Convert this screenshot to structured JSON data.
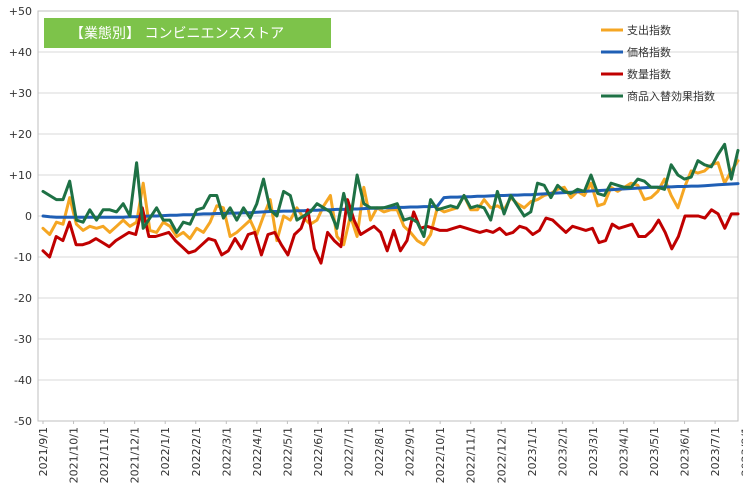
{
  "chart_data": {
    "type": "line",
    "title": "【業態別】 コンビニエンスストア",
    "title_bg": "#7DC34A",
    "ylim": [
      -50,
      50
    ],
    "y_ticks": [
      "+50",
      "+40",
      "+30",
      "+20",
      "+10",
      "0",
      "-10",
      "-20",
      "-30",
      "-40",
      "-50"
    ],
    "x_ticks": [
      "2021/9/1",
      "2021/10/1",
      "2021/11/1",
      "2021/12/1",
      "2022/1/1",
      "2022/2/1",
      "2022/3/1",
      "2022/4/1",
      "2022/5/1",
      "2022/6/1",
      "2022/7/1",
      "2022/8/1",
      "2022/9/1",
      "2022/10/1",
      "2022/11/1",
      "2022/12/1",
      "2023/1/1",
      "2023/2/1",
      "2023/3/1",
      "2023/4/1",
      "2023/5/1",
      "2023/6/1",
      "2023/7/1",
      "2023/8/1"
    ],
    "grid": "horizontal",
    "legend_position": "top-right",
    "series": [
      {
        "name": "支出指数",
        "color": "#F5A623",
        "values": [
          -3,
          -4.5,
          -1.5,
          -2,
          4.5,
          -2,
          -3.5,
          -2.5,
          -3,
          -2.5,
          -4,
          -2.5,
          -1,
          -2.5,
          -1.5,
          8,
          -3.5,
          -4,
          -1.5,
          -2.5,
          -5,
          -4,
          -5.5,
          -3,
          -4,
          -1.5,
          2.5,
          2,
          -5,
          -4,
          -2.5,
          -1,
          -4.5,
          0,
          4,
          -6,
          0,
          -1,
          2,
          -0.5,
          -2,
          -1,
          2.5,
          5,
          -5,
          -7,
          0,
          -5,
          7,
          -1,
          2,
          1,
          1.5,
          1.5,
          -2.5,
          -4,
          -6,
          -7,
          -4.5,
          2,
          1,
          1.5,
          2,
          5,
          1.5,
          1.5,
          4,
          2,
          2.5,
          1.5,
          4.5,
          3,
          2,
          3.5,
          4,
          5,
          5.5,
          6.5,
          7,
          4.5,
          6,
          5,
          8,
          2.5,
          3,
          7,
          6,
          7,
          8,
          7.5,
          4,
          4.5,
          6,
          9,
          5,
          2,
          7,
          11,
          10.5,
          11,
          12.5,
          13,
          8,
          11,
          13.5
        ]
      },
      {
        "name": "価格指数",
        "color": "#1F5FB5",
        "values": [
          0,
          -0.2,
          -0.3,
          -0.3,
          -0.3,
          -0.3,
          -0.3,
          -0.3,
          -0.3,
          -0.3,
          -0.3,
          -0.3,
          -0.3,
          -0.2,
          -0.2,
          -0.1,
          0,
          0,
          0.1,
          0.2,
          0.2,
          0.3,
          0.3,
          0.4,
          0.5,
          0.5,
          0.6,
          0.6,
          0.7,
          0.7,
          0.8,
          0.8,
          0.9,
          1,
          1.1,
          1.1,
          1.2,
          1.2,
          1.3,
          1.3,
          1.4,
          1.4,
          1.5,
          1.5,
          1.6,
          1.6,
          1.7,
          1.7,
          1.8,
          1.9,
          1.9,
          2,
          2,
          2.1,
          2.1,
          2.2,
          2.2,
          2.3,
          2.3,
          2.4,
          4.5,
          4.6,
          4.6,
          4.7,
          4.7,
          4.8,
          4.8,
          4.9,
          5,
          5,
          5.1,
          5.1,
          5.2,
          5.2,
          5.3,
          5.4,
          5.5,
          5.6,
          5.7,
          5.8,
          5.9,
          6,
          6.1,
          6.2,
          6.3,
          6.4,
          6.5,
          6.6,
          6.7,
          6.8,
          6.9,
          7,
          7,
          7.1,
          7.1,
          7.2,
          7.2,
          7.3,
          7.3,
          7.4,
          7.5,
          7.6,
          7.7,
          7.8,
          7.9
        ]
      },
      {
        "name": "数量指数",
        "color": "#C00000",
        "values": [
          -8.5,
          -10,
          -5,
          -6,
          -1.5,
          -7,
          -7,
          -6.5,
          -5.5,
          -6.5,
          -7.5,
          -6,
          -5,
          -4,
          -4.5,
          2,
          -5,
          -5,
          -4.5,
          -4,
          -6,
          -7.5,
          -9,
          -8.5,
          -7,
          -5.5,
          -6,
          -9.5,
          -8.5,
          -5.5,
          -8,
          -4.5,
          -4,
          -9.5,
          -4.5,
          -4,
          -7,
          -9.5,
          -4.5,
          -3,
          1.5,
          -8,
          -11.5,
          -4,
          -6,
          -7.5,
          4,
          -1,
          -4.5,
          -3.5,
          -2.5,
          -4,
          -8.5,
          -3.5,
          -8.5,
          -6,
          1,
          -3,
          -2.5,
          -3,
          -3.5,
          -3.5,
          -3,
          -2.5,
          -3,
          -3.5,
          -4,
          -3.5,
          -4,
          -3,
          -4.5,
          -4,
          -2.5,
          -3,
          -4.5,
          -3.5,
          -0.5,
          -1,
          -2.5,
          -4,
          -2.5,
          -3,
          -3.5,
          -3,
          -6.5,
          -6,
          -2,
          -3,
          -2.5,
          -2,
          -5,
          -5,
          -3.5,
          -1,
          -4,
          -8,
          -5,
          0,
          0,
          0,
          -0.5,
          1.5,
          0.5,
          -3,
          0.5,
          0.5
        ]
      },
      {
        "name": "商品入替効果指数",
        "color": "#1E7145",
        "values": [
          6,
          5,
          4,
          4,
          8.5,
          -1,
          -1.5,
          1.5,
          -1,
          1.5,
          1.5,
          1,
          3,
          0,
          13,
          -3,
          -0.5,
          2,
          -1,
          -1,
          -4,
          -1.5,
          -2,
          1.5,
          2,
          5,
          5,
          -0.5,
          2,
          -1,
          2,
          -0.5,
          3,
          9,
          1.5,
          0,
          6,
          5,
          -1,
          0,
          1,
          3,
          2,
          1,
          -3,
          5.5,
          -1,
          10,
          3,
          2,
          2,
          2,
          2.5,
          3,
          -1,
          -0.5,
          -1.5,
          -5,
          4,
          1.5,
          2,
          2.5,
          2,
          5,
          2,
          2.5,
          2,
          -1,
          6,
          0.5,
          5,
          2.5,
          0,
          1,
          8,
          7.5,
          4.5,
          7.5,
          6,
          5.5,
          6.5,
          6,
          10,
          5.5,
          5,
          8,
          7.5,
          7,
          7,
          9,
          8.5,
          7,
          7,
          6.5,
          12.5,
          10,
          9,
          9.5,
          13.5,
          12.5,
          12,
          15,
          17.5,
          9,
          16
        ]
      }
    ]
  }
}
